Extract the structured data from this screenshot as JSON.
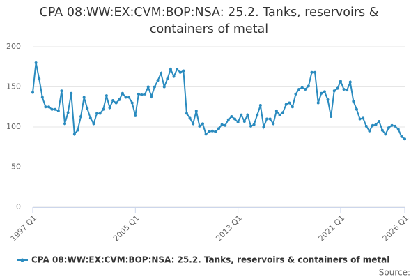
{
  "chart_data": {
    "type": "line",
    "title": "CPA 08:WW:EX:CVM:BOP:NSA: 25.2. Tanks, reservoirs & containers of metal",
    "source_label": "Source:",
    "categories": [
      "1997 Q1",
      null,
      null,
      null,
      null,
      null,
      null,
      null,
      null,
      null,
      null,
      null,
      null,
      null,
      null,
      null,
      null,
      null,
      null,
      null,
      null,
      null,
      null,
      null,
      null,
      null,
      null,
      null,
      null,
      null,
      null,
      null,
      "2005 Q1",
      null,
      null,
      null,
      null,
      null,
      null,
      null,
      null,
      null,
      null,
      null,
      null,
      null,
      null,
      null,
      null,
      null,
      null,
      null,
      null,
      null,
      null,
      null,
      null,
      null,
      null,
      null,
      null,
      null,
      null,
      null,
      "2013 Q1",
      null,
      null,
      null,
      null,
      null,
      null,
      null,
      null,
      null,
      null,
      null,
      null,
      null,
      null,
      null,
      null,
      null,
      null,
      null,
      null,
      null,
      null,
      null,
      null,
      null,
      null,
      null,
      null,
      null,
      null,
      null,
      "2021 Q1",
      null,
      null,
      null,
      null,
      null,
      null,
      null,
      null,
      null,
      null,
      null,
      null,
      null,
      null,
      null,
      null,
      null,
      null,
      null,
      "2026 Q1"
    ],
    "series": [
      {
        "name": "CPA 08:WW:EX:CVM:BOP:NSA: 25.2. Tanks, reservoirs & containers of metal",
        "color": "#2a8bbf",
        "values": [
          143,
          180,
          160,
          137,
          125,
          125,
          122,
          122,
          120,
          145,
          104,
          118,
          142,
          91,
          96,
          113,
          137,
          123,
          111,
          104,
          117,
          117,
          122,
          139,
          124,
          133,
          130,
          134,
          142,
          137,
          137,
          130,
          114,
          141,
          140,
          141,
          150,
          138,
          150,
          158,
          167,
          150,
          160,
          172,
          163,
          172,
          168,
          170,
          117,
          111,
          104,
          120,
          101,
          104,
          91,
          94,
          95,
          94,
          98,
          103,
          102,
          109,
          113,
          110,
          106,
          115,
          107,
          115,
          101,
          103,
          115,
          127,
          100,
          110,
          110,
          104,
          120,
          115,
          118,
          128,
          130,
          125,
          141,
          147,
          149,
          147,
          151,
          168,
          168,
          130,
          142,
          144,
          134,
          113,
          145,
          148,
          157,
          147,
          146,
          156,
          132,
          122,
          110,
          111,
          101,
          95,
          102,
          103,
          107,
          96,
          91,
          99,
          102,
          101,
          97,
          88,
          85
        ]
      }
    ],
    "ylim": [
      0,
      200
    ],
    "yticks": [
      0,
      50,
      100,
      150,
      200
    ],
    "grid": true
  }
}
